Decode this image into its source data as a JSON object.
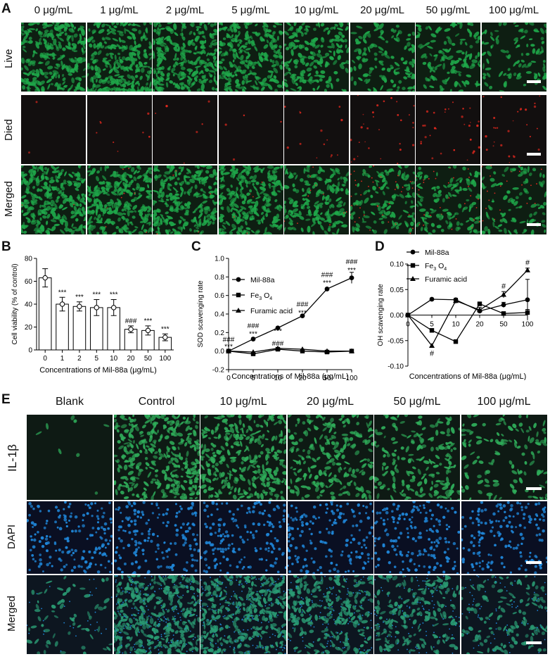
{
  "panelA": {
    "letter": "A",
    "columns": [
      "0 μg/mL",
      "1 μg/mL",
      "2 μg/mL",
      "5 μg/mL",
      "10 μg/mL",
      "20 μg/mL",
      "50 μg/mL",
      "100 μg/mL"
    ],
    "rows": [
      "Live",
      "Died",
      "Merged"
    ],
    "colors": {
      "live": "#1fa84a",
      "dead": "#e0281e",
      "bg": "#0f1a12"
    }
  },
  "panelE": {
    "letter": "E",
    "columns": [
      "Blank",
      "Control",
      "10 μg/mL",
      "20 μg/mL",
      "50 μg/mL",
      "100 μg/mL"
    ],
    "rows": [
      "IL-1β",
      "DAPI",
      "Merged"
    ],
    "colors": {
      "green": "#2fae5a",
      "dapi": "#1f86d8",
      "bg": "#0c1120"
    }
  },
  "chart_data": [
    {
      "panel": "B",
      "type": "bar",
      "xlabel": "Concentrations of Mil-88a (μg/mL)",
      "ylabel": "Cell viability (% of control)",
      "ylim": [
        0,
        80
      ],
      "yticks": [
        0,
        20,
        40,
        60,
        80
      ],
      "categories": [
        "0",
        "1",
        "2",
        "5",
        "10",
        "20",
        "50",
        "100"
      ],
      "values": [
        63,
        40,
        38,
        37,
        37,
        18,
        17,
        11
      ],
      "errors": [
        8,
        6,
        4,
        7,
        7,
        3,
        4,
        3
      ],
      "annotations": [
        "",
        "***",
        "***",
        "***",
        "***",
        "###\n***",
        "***",
        "***"
      ],
      "annotations_split": [
        [
          ""
        ],
        [
          "***"
        ],
        [
          "***"
        ],
        [
          "***"
        ],
        [
          "***"
        ],
        [
          "###"
        ],
        [
          "***"
        ],
        [
          "***"
        ]
      ]
    },
    {
      "panel": "C",
      "type": "line",
      "xlabel": "Concentrations of Mil-88a (μg/mL)",
      "ylabel": "SOD scavenging rate",
      "ylim": [
        -0.2,
        1.0
      ],
      "yticks": [
        "-0.2",
        "0.0",
        "0.2",
        "0.4",
        "0.6",
        "0.8",
        "1.0"
      ],
      "categories": [
        "0",
        "5",
        "10",
        "20",
        "50",
        "100"
      ],
      "legend": [
        "Mil-88a",
        "Fe3O4",
        "Furamic acid"
      ],
      "series": [
        {
          "name": "Mil-88a",
          "marker": "circle",
          "values": [
            0.0,
            0.13,
            0.25,
            0.38,
            0.67,
            0.79
          ],
          "errors": [
            0.01,
            0.01,
            0.01,
            0.01,
            0.01,
            0.06
          ]
        },
        {
          "name": "Fe3O4",
          "marker": "square",
          "values": [
            0.0,
            -0.03,
            0.02,
            0.0,
            -0.01,
            0.0
          ],
          "errors": [
            0,
            0,
            0,
            0,
            0,
            0
          ]
        },
        {
          "name": "Furamic acid",
          "marker": "triangle",
          "values": [
            0.0,
            -0.01,
            0.03,
            0.02,
            0.0,
            0.0
          ],
          "errors": [
            0,
            0,
            0,
            0,
            0,
            0
          ]
        }
      ],
      "annotations_top": [
        "###",
        "###",
        "###",
        "###",
        "###",
        "###"
      ],
      "annotations_bottom": [
        "***",
        "***",
        "***",
        "***",
        "***",
        "***"
      ]
    },
    {
      "panel": "D",
      "type": "line",
      "xlabel": "Concentrations of Mil-88a (μg/mL)",
      "ylabel": "OH scavenging rate",
      "ylim": [
        -0.1,
        0.1
      ],
      "yticks": [
        "-0.10",
        "-0.05",
        "0.00",
        "0.05",
        "0.10"
      ],
      "categories": [
        "0",
        "5",
        "10",
        "20",
        "50",
        "100"
      ],
      "legend": [
        "Mil-88a",
        "Fe3O4",
        "Furamic acid"
      ],
      "series": [
        {
          "name": "Mil-88a",
          "marker": "circle",
          "values": [
            0.0,
            0.031,
            0.03,
            0.008,
            0.02,
            0.03
          ],
          "errors": [
            0,
            0,
            0,
            0,
            0.005,
            0.04
          ]
        },
        {
          "name": "Fe3O4",
          "marker": "square",
          "values": [
            0.0,
            -0.03,
            -0.052,
            0.022,
            0.003,
            0.005
          ],
          "errors": [
            0,
            0,
            0,
            0,
            0,
            0.006
          ]
        },
        {
          "name": "Furamic acid",
          "marker": "triangle",
          "values": [
            0.0,
            -0.06,
            0.028,
            0.01,
            0.04,
            0.088
          ],
          "errors": [
            0,
            0,
            0.005,
            0.005,
            0.006,
            0.004
          ]
        }
      ],
      "annotations": [
        {
          "category": "5",
          "text": "#",
          "pos": "below"
        },
        {
          "category": "50",
          "text": "#",
          "pos": "above"
        },
        {
          "category": "100",
          "text": "#",
          "pos": "above"
        }
      ]
    }
  ]
}
